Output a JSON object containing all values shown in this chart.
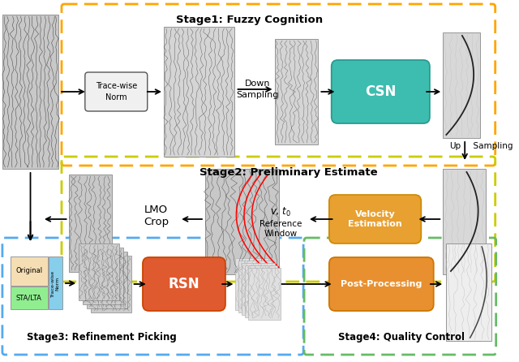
{
  "bg_color": "#ffffff",
  "stage1": {
    "label": "Stage1: Fuzzy Cognition",
    "color": "#FFA500"
  },
  "stage2": {
    "label": "Stage2: Preliminary Estimate",
    "color": "#DDCC00"
  },
  "stage3": {
    "label": "Stage3: Refinement Picking",
    "color": "#55AAEE"
  },
  "stage4": {
    "label": "Stage4: Quality Control",
    "color": "#66BB66"
  },
  "csn_color": "#3DBDB0",
  "vel_color": "#E8A030",
  "rsn_color": "#E05A30",
  "post_color": "#E89030"
}
